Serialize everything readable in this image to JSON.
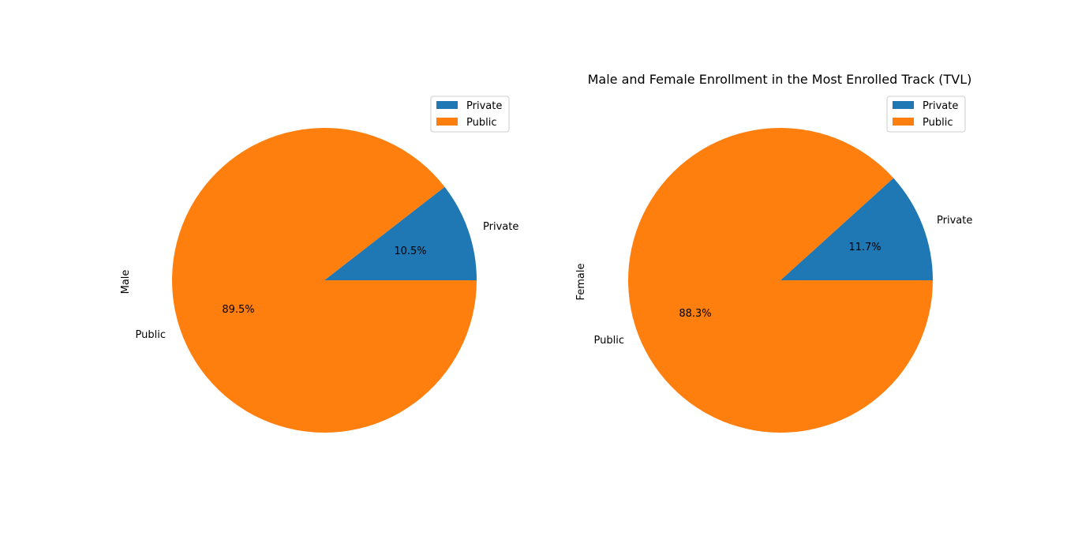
{
  "chart_data": [
    {
      "type": "pie",
      "title": "",
      "ylabel": "Male",
      "categories": [
        "Private",
        "Public"
      ],
      "values": [
        10.5,
        89.5
      ],
      "percent_labels": [
        "10.5%",
        "89.5%"
      ],
      "colors": [
        "#1f77b4",
        "#ff7f0e"
      ],
      "legend": {
        "entries": [
          "Private",
          "Public"
        ],
        "placement": "top-right"
      }
    },
    {
      "type": "pie",
      "title": "Male and Female Enrollment in the Most Enrolled Track (TVL)",
      "ylabel": "Female",
      "categories": [
        "Private",
        "Public"
      ],
      "values": [
        11.7,
        88.3
      ],
      "percent_labels": [
        "11.7%",
        "88.3%"
      ],
      "colors": [
        "#1f77b4",
        "#ff7f0e"
      ],
      "legend": {
        "entries": [
          "Private",
          "Public"
        ],
        "placement": "top-right"
      }
    }
  ]
}
